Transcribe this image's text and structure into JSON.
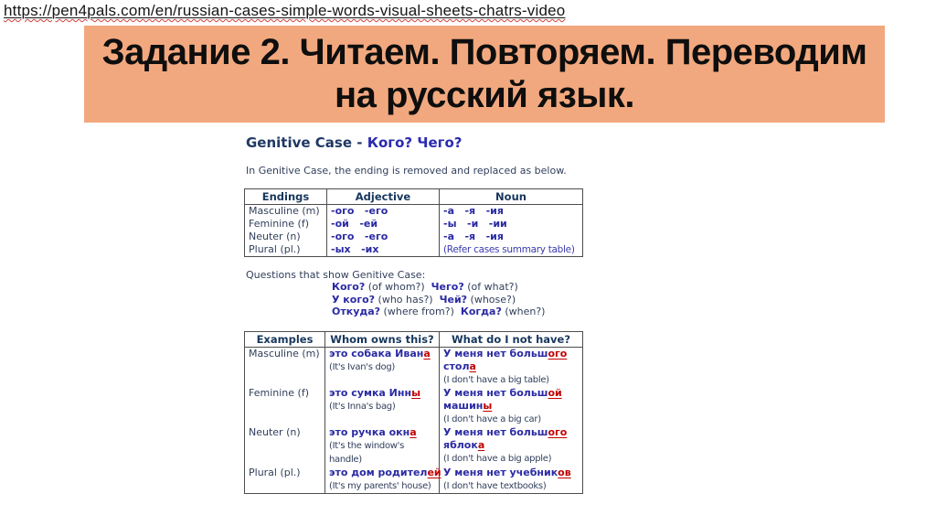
{
  "colors": {
    "banner_bg": "#F2A87E",
    "russian_blue": "#2A2AA4",
    "ending_red": "#C00000",
    "header_navy": "#17375D"
  },
  "page": {
    "url": "https://pen4pals.com/en/russian-cases-simple-words-visual-sheets-chatrs-video"
  },
  "banner": {
    "title_line1": "Задание 2. Читаем. Повторяем. Переводим",
    "title_line2": "на русский язык."
  },
  "sheet": {
    "heading_en": "Genitive Case - ",
    "heading_ru": "Кого? Чего?",
    "intro": "In Genitive Case, the ending is removed and replaced as below.",
    "endings_table": {
      "headers": [
        "Endings",
        "Adjective",
        "Noun"
      ],
      "rows": [
        {
          "label": "Masculine (m)",
          "adjective": "-ого   -его",
          "noun": "-а   -я   -ия",
          "noun_is_note": false
        },
        {
          "label": "Feminine (f)",
          "adjective": "-ой   -ей",
          "noun": "-ы   -и   -ии",
          "noun_is_note": false
        },
        {
          "label": "Neuter (n)",
          "adjective": "-ого   -его",
          "noun": "-а   -я   -ия",
          "noun_is_note": false
        },
        {
          "label": "Plural (pl.)",
          "adjective": "-ых   -их",
          "noun": "(Refer cases summary table)",
          "noun_is_note": true
        }
      ]
    },
    "questions": {
      "intro": "Questions that show Genitive Case:",
      "lines": [
        [
          {
            "t": "Кого?",
            "s": "b"
          },
          {
            "t": " (of whom?)  ",
            "s": "p"
          },
          {
            "t": "Чего?",
            "s": "b"
          },
          {
            "t": " (of what?)",
            "s": "p"
          }
        ],
        [
          {
            "t": "У кого?",
            "s": "b"
          },
          {
            "t": " (who has?)  ",
            "s": "p"
          },
          {
            "t": "Чей?",
            "s": "b"
          },
          {
            "t": " (whose?)",
            "s": "p"
          }
        ],
        [
          {
            "t": "Откуда?",
            "s": "b"
          },
          {
            "t": " (where from?)  ",
            "s": "p"
          },
          {
            "t": "Когда?",
            "s": "b"
          },
          {
            "t": " (when?)",
            "s": "p"
          }
        ]
      ]
    },
    "examples_table": {
      "headers": [
        "Examples",
        "Whom owns this?",
        "What do I not have?"
      ],
      "rows": [
        {
          "label": "Masculine (m)",
          "owns": [
            [
              {
                "t": "это собака Иван",
                "s": "b"
              },
              {
                "t": "а",
                "s": "r"
              }
            ],
            [
              {
                "t": "(It's Ivan's dog)",
                "s": "p"
              }
            ]
          ],
          "not_have": [
            [
              {
                "t": "У меня нет больш",
                "s": "b"
              },
              {
                "t": "ого",
                "s": "r"
              }
            ],
            [
              {
                "t": "стол",
                "s": "b"
              },
              {
                "t": "а",
                "s": "r"
              }
            ],
            [
              {
                "t": "(I don't have a big table)",
                "s": "p"
              }
            ]
          ]
        },
        {
          "label": "Feminine (f)",
          "owns": [
            [
              {
                "t": "это сумка Инн",
                "s": "b"
              },
              {
                "t": "ы",
                "s": "r"
              }
            ],
            [
              {
                "t": "(It's Inna's bag)",
                "s": "p"
              }
            ]
          ],
          "not_have": [
            [
              {
                "t": "У меня нет больш",
                "s": "b"
              },
              {
                "t": "ой",
                "s": "r"
              }
            ],
            [
              {
                "t": "машин",
                "s": "b"
              },
              {
                "t": "ы",
                "s": "r"
              }
            ],
            [
              {
                "t": "(I don't have a big car)",
                "s": "p"
              }
            ]
          ]
        },
        {
          "label": "Neuter (n)",
          "owns": [
            [
              {
                "t": "это ручка окн",
                "s": "b"
              },
              {
                "t": "а",
                "s": "r"
              }
            ],
            [
              {
                "t": "(It's the window's",
                "s": "p"
              }
            ],
            [
              {
                "t": "handle)",
                "s": "p"
              }
            ]
          ],
          "not_have": [
            [
              {
                "t": "У меня нет больш",
                "s": "b"
              },
              {
                "t": "ого",
                "s": "r"
              }
            ],
            [
              {
                "t": "яблок",
                "s": "b"
              },
              {
                "t": "а",
                "s": "r"
              }
            ],
            [
              {
                "t": "(I don't have a big apple)",
                "s": "p"
              }
            ]
          ]
        },
        {
          "label": "Plural (pl.)",
          "owns": [
            [
              {
                "t": "это дом родител",
                "s": "b"
              },
              {
                "t": "ей",
                "s": "r"
              }
            ],
            [
              {
                "t": "(It's my parents' house)",
                "s": "p"
              }
            ]
          ],
          "not_have": [
            [
              {
                "t": "У меня нет учебник",
                "s": "b"
              },
              {
                "t": "ов",
                "s": "r"
              }
            ],
            [
              {
                "t": "(I don't have textbooks)",
                "s": "p"
              }
            ]
          ]
        }
      ]
    }
  }
}
